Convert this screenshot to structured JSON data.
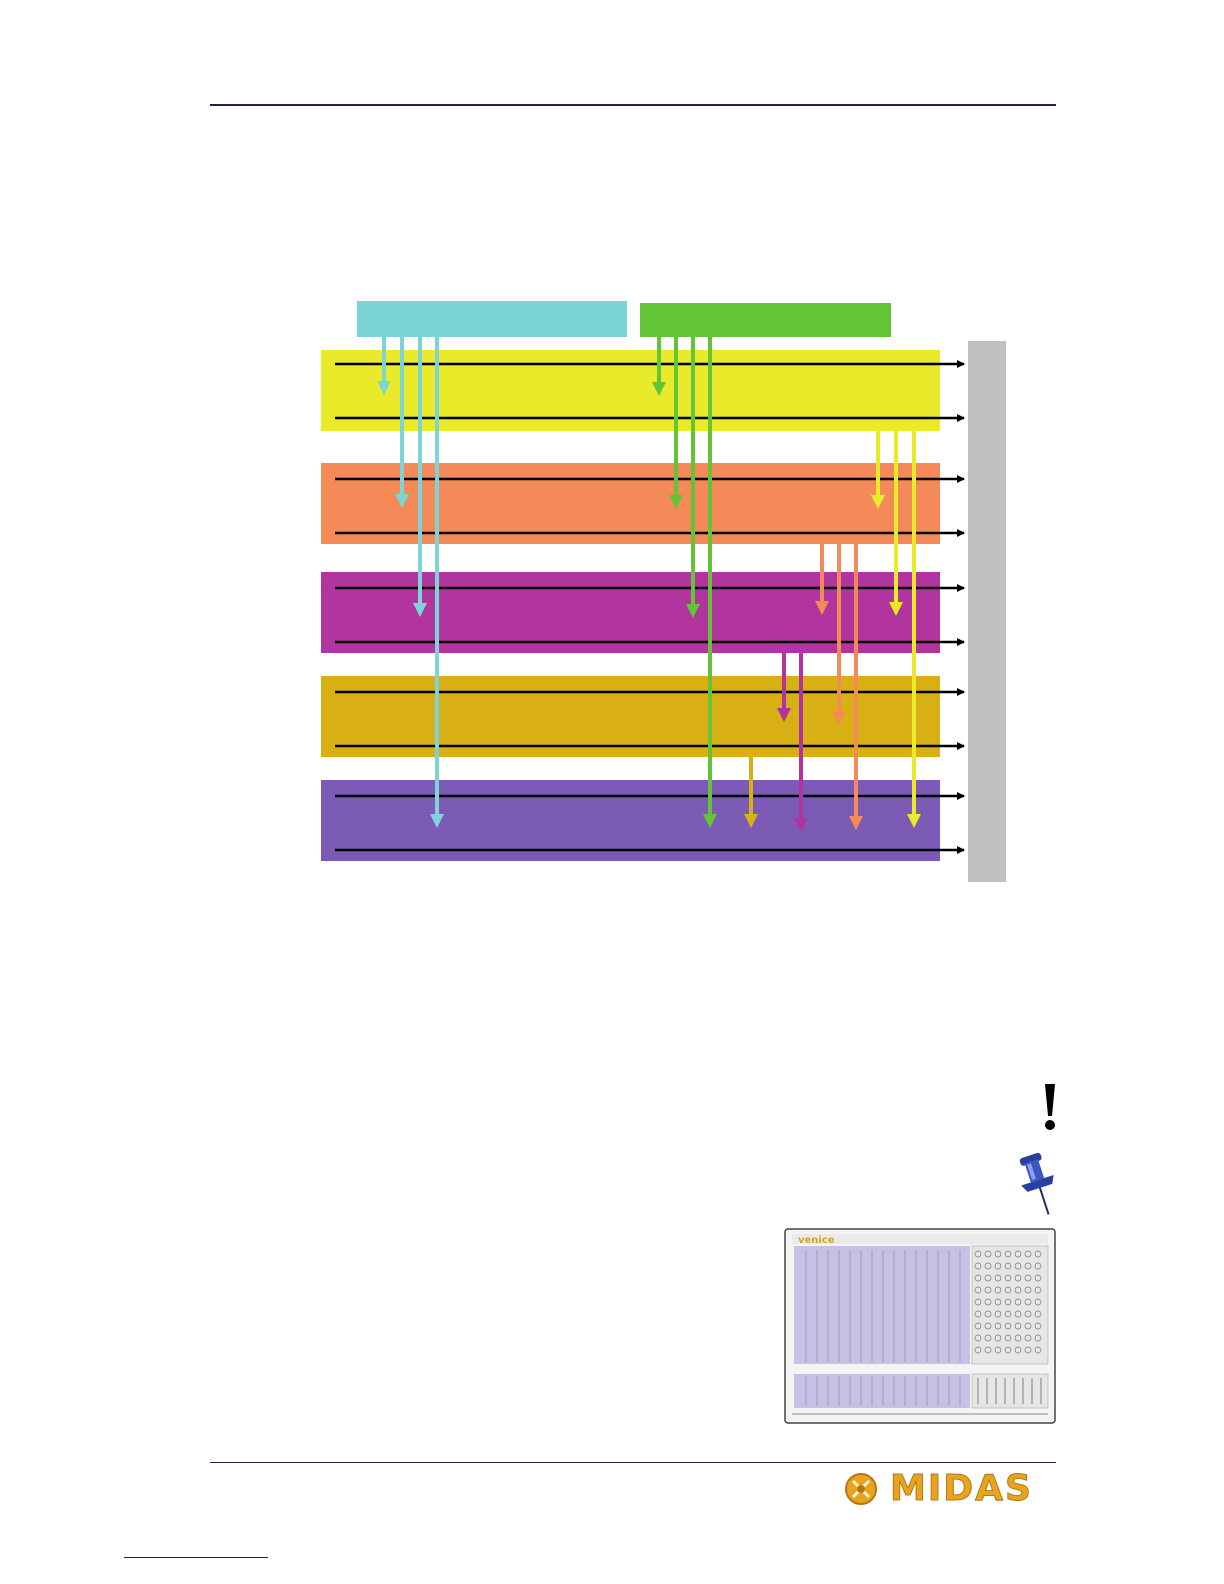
{
  "colors": {
    "page_rule": "#1c1c5e",
    "cyan_block": "#7dd4d8",
    "green_block": "#62c436",
    "yellow_band": "#e9ea2a",
    "orange_band": "#f48a58",
    "magenta_band": "#b2349e",
    "gold_band": "#d9b014",
    "purple_band": "#7b5bb5",
    "output_bar": "#c0c0c0",
    "line": "#000000"
  },
  "icons": {
    "caution": "exclamation-icon",
    "note": "pushpin-icon",
    "thumbnail": "console-thumbnail",
    "logo": "midas-logo"
  },
  "logo": {
    "text": "MIDAS"
  },
  "thumbnail": {
    "brand_text": "venice"
  }
}
